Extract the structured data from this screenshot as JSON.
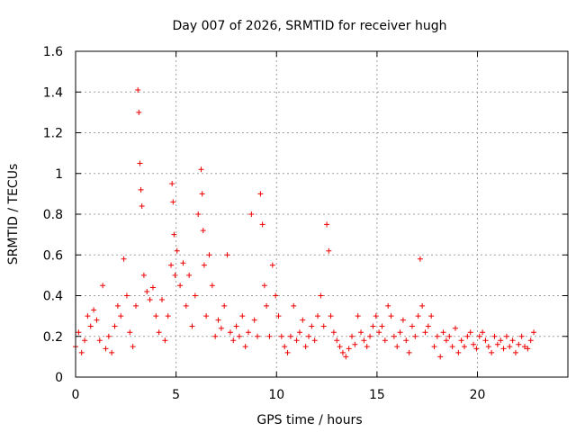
{
  "chart_data": {
    "type": "scatter",
    "title": "Day 007 of 2026, SRMTID for receiver hugh",
    "xlabel": "GPS time / hours",
    "ylabel": "SRMTID / TECUs",
    "xlim": [
      0,
      24.5
    ],
    "ylim": [
      0,
      1.6
    ],
    "xticks": [
      0,
      5,
      10,
      15,
      20
    ],
    "xtick_labels": [
      "0",
      "5",
      "10",
      "15",
      "20"
    ],
    "yticks": [
      0,
      0.2,
      0.4,
      0.6,
      0.8,
      1.0,
      1.2,
      1.4,
      1.6
    ],
    "ytick_labels": [
      "0",
      "0.2",
      "0.4",
      "0.6",
      "0.8",
      "1",
      "1.2",
      "1.4",
      "1.6"
    ],
    "grid": true,
    "marker": "+",
    "color": "#ee0000",
    "series": [
      {
        "name": "SRMTID",
        "x": [
          0.0,
          0.15,
          0.3,
          0.45,
          0.6,
          0.75,
          0.9,
          1.05,
          1.2,
          1.35,
          1.5,
          1.65,
          1.8,
          1.95,
          2.1,
          2.25,
          2.4,
          2.55,
          2.7,
          2.85,
          3.0,
          3.1,
          3.15,
          3.2,
          3.25,
          3.3,
          3.4,
          3.55,
          3.7,
          3.85,
          4.0,
          4.15,
          4.3,
          4.45,
          4.6,
          4.75,
          4.8,
          4.85,
          4.9,
          4.95,
          5.05,
          5.2,
          5.35,
          5.5,
          5.65,
          5.8,
          5.95,
          6.1,
          6.25,
          6.3,
          6.35,
          6.4,
          6.5,
          6.65,
          6.8,
          6.95,
          7.1,
          7.25,
          7.4,
          7.55,
          7.7,
          7.85,
          8.0,
          8.15,
          8.3,
          8.45,
          8.6,
          8.75,
          8.9,
          9.05,
          9.2,
          9.3,
          9.4,
          9.5,
          9.65,
          9.8,
          9.95,
          10.1,
          10.25,
          10.4,
          10.55,
          10.7,
          10.85,
          11.0,
          11.15,
          11.3,
          11.45,
          11.6,
          11.75,
          11.9,
          12.05,
          12.2,
          12.35,
          12.5,
          12.6,
          12.7,
          12.85,
          13.0,
          13.15,
          13.3,
          13.45,
          13.6,
          13.75,
          13.9,
          14.05,
          14.2,
          14.35,
          14.5,
          14.65,
          14.8,
          14.95,
          15.1,
          15.25,
          15.4,
          15.55,
          15.7,
          15.85,
          16.0,
          16.15,
          16.3,
          16.45,
          16.6,
          16.75,
          16.9,
          17.05,
          17.15,
          17.25,
          17.4,
          17.55,
          17.7,
          17.85,
          18.0,
          18.15,
          18.3,
          18.45,
          18.6,
          18.75,
          18.9,
          19.05,
          19.2,
          19.35,
          19.5,
          19.65,
          19.8,
          19.95,
          20.1,
          20.25,
          20.4,
          20.55,
          20.7,
          20.85,
          21.0,
          21.15,
          21.3,
          21.45,
          21.6,
          21.75,
          21.9,
          22.05,
          22.2,
          22.35,
          22.5,
          22.65,
          22.8
        ],
        "y": [
          0.15,
          0.22,
          0.12,
          0.18,
          0.3,
          0.25,
          0.33,
          0.28,
          0.18,
          0.45,
          0.14,
          0.2,
          0.12,
          0.25,
          0.35,
          0.3,
          0.58,
          0.4,
          0.22,
          0.15,
          0.35,
          1.41,
          1.3,
          1.05,
          0.92,
          0.84,
          0.5,
          0.42,
          0.38,
          0.44,
          0.3,
          0.22,
          0.38,
          0.18,
          0.3,
          0.55,
          0.95,
          0.86,
          0.7,
          0.5,
          0.62,
          0.45,
          0.56,
          0.35,
          0.5,
          0.25,
          0.4,
          0.8,
          1.02,
          0.9,
          0.72,
          0.55,
          0.3,
          0.6,
          0.45,
          0.2,
          0.28,
          0.24,
          0.35,
          0.6,
          0.22,
          0.18,
          0.25,
          0.2,
          0.3,
          0.15,
          0.22,
          0.8,
          0.28,
          0.2,
          0.9,
          0.75,
          0.45,
          0.35,
          0.2,
          0.55,
          0.4,
          0.3,
          0.2,
          0.15,
          0.12,
          0.2,
          0.35,
          0.18,
          0.22,
          0.28,
          0.15,
          0.2,
          0.25,
          0.18,
          0.3,
          0.4,
          0.25,
          0.75,
          0.62,
          0.3,
          0.22,
          0.18,
          0.15,
          0.12,
          0.1,
          0.14,
          0.2,
          0.16,
          0.3,
          0.22,
          0.18,
          0.15,
          0.2,
          0.25,
          0.3,
          0.22,
          0.25,
          0.18,
          0.35,
          0.3,
          0.2,
          0.15,
          0.22,
          0.28,
          0.18,
          0.12,
          0.25,
          0.2,
          0.3,
          0.58,
          0.35,
          0.22,
          0.25,
          0.3,
          0.15,
          0.2,
          0.1,
          0.22,
          0.18,
          0.2,
          0.15,
          0.24,
          0.12,
          0.18,
          0.15,
          0.2,
          0.22,
          0.16,
          0.14,
          0.2,
          0.22,
          0.18,
          0.15,
          0.12,
          0.2,
          0.16,
          0.18,
          0.14,
          0.2,
          0.15,
          0.18,
          0.12,
          0.16,
          0.2,
          0.15,
          0.14,
          0.18,
          0.22
        ]
      }
    ]
  }
}
